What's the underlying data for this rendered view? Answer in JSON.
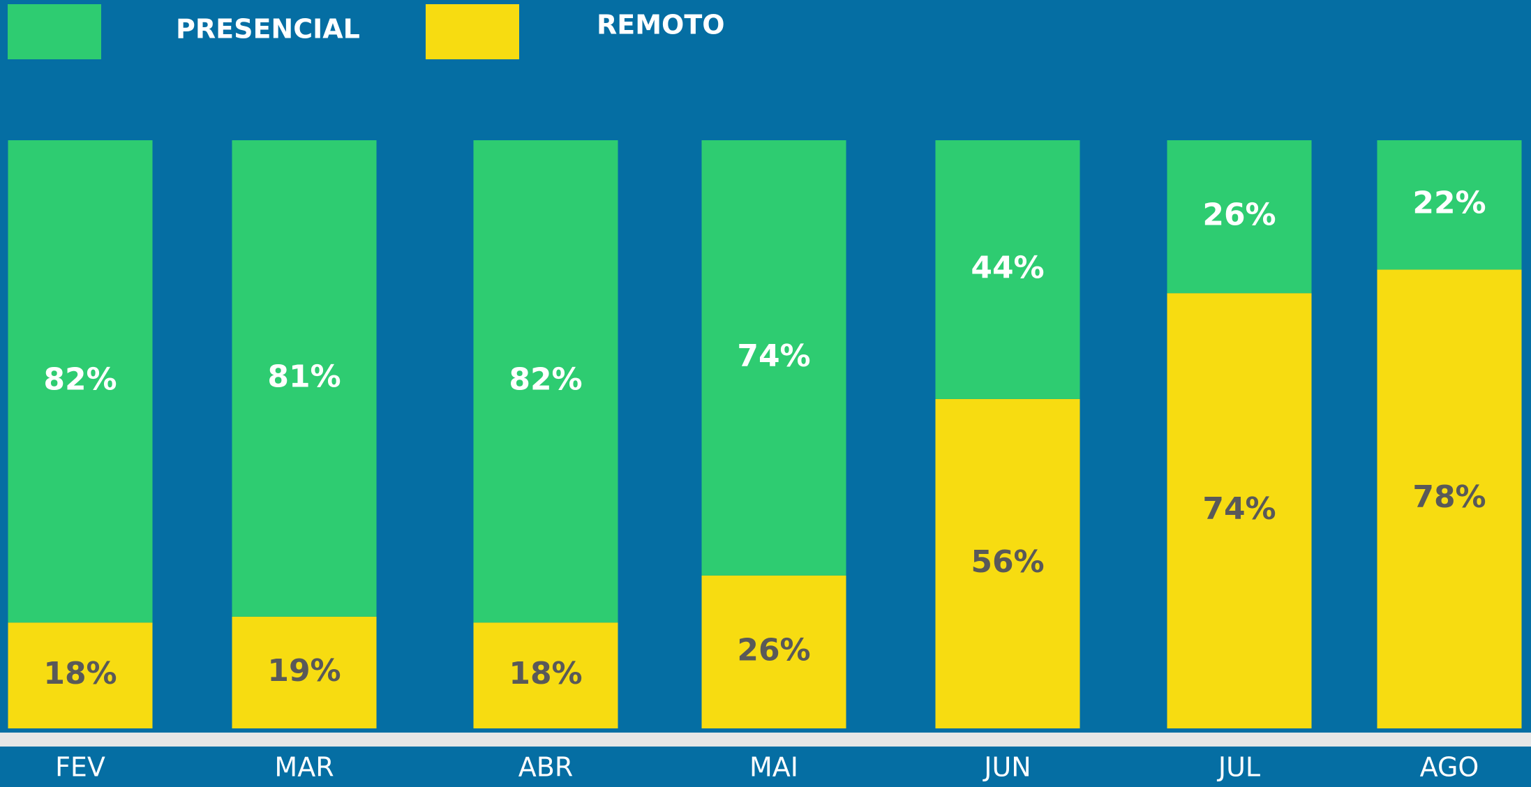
{
  "chart_data": {
    "type": "stacked_bar",
    "categories": [
      "FEV",
      "MAR",
      "ABR",
      "MAI",
      "JUN",
      "JUL",
      "AGO"
    ],
    "series": [
      {
        "name": "PRESENCIAL",
        "color": "#2ecc71",
        "values": [
          82,
          81,
          82,
          74,
          44,
          26,
          22
        ],
        "value_labels": [
          "82%",
          "81%",
          "82%",
          "74%",
          "44%",
          "26%",
          "22%"
        ]
      },
      {
        "name": "REMOTO",
        "color": "#f7dc11",
        "values": [
          18,
          19,
          18,
          26,
          56,
          74,
          78
        ],
        "value_labels": [
          "18%",
          "19%",
          "18%",
          "26%",
          "56%",
          "74%",
          "78%"
        ]
      }
    ],
    "ylim": [
      0,
      100
    ]
  }
}
